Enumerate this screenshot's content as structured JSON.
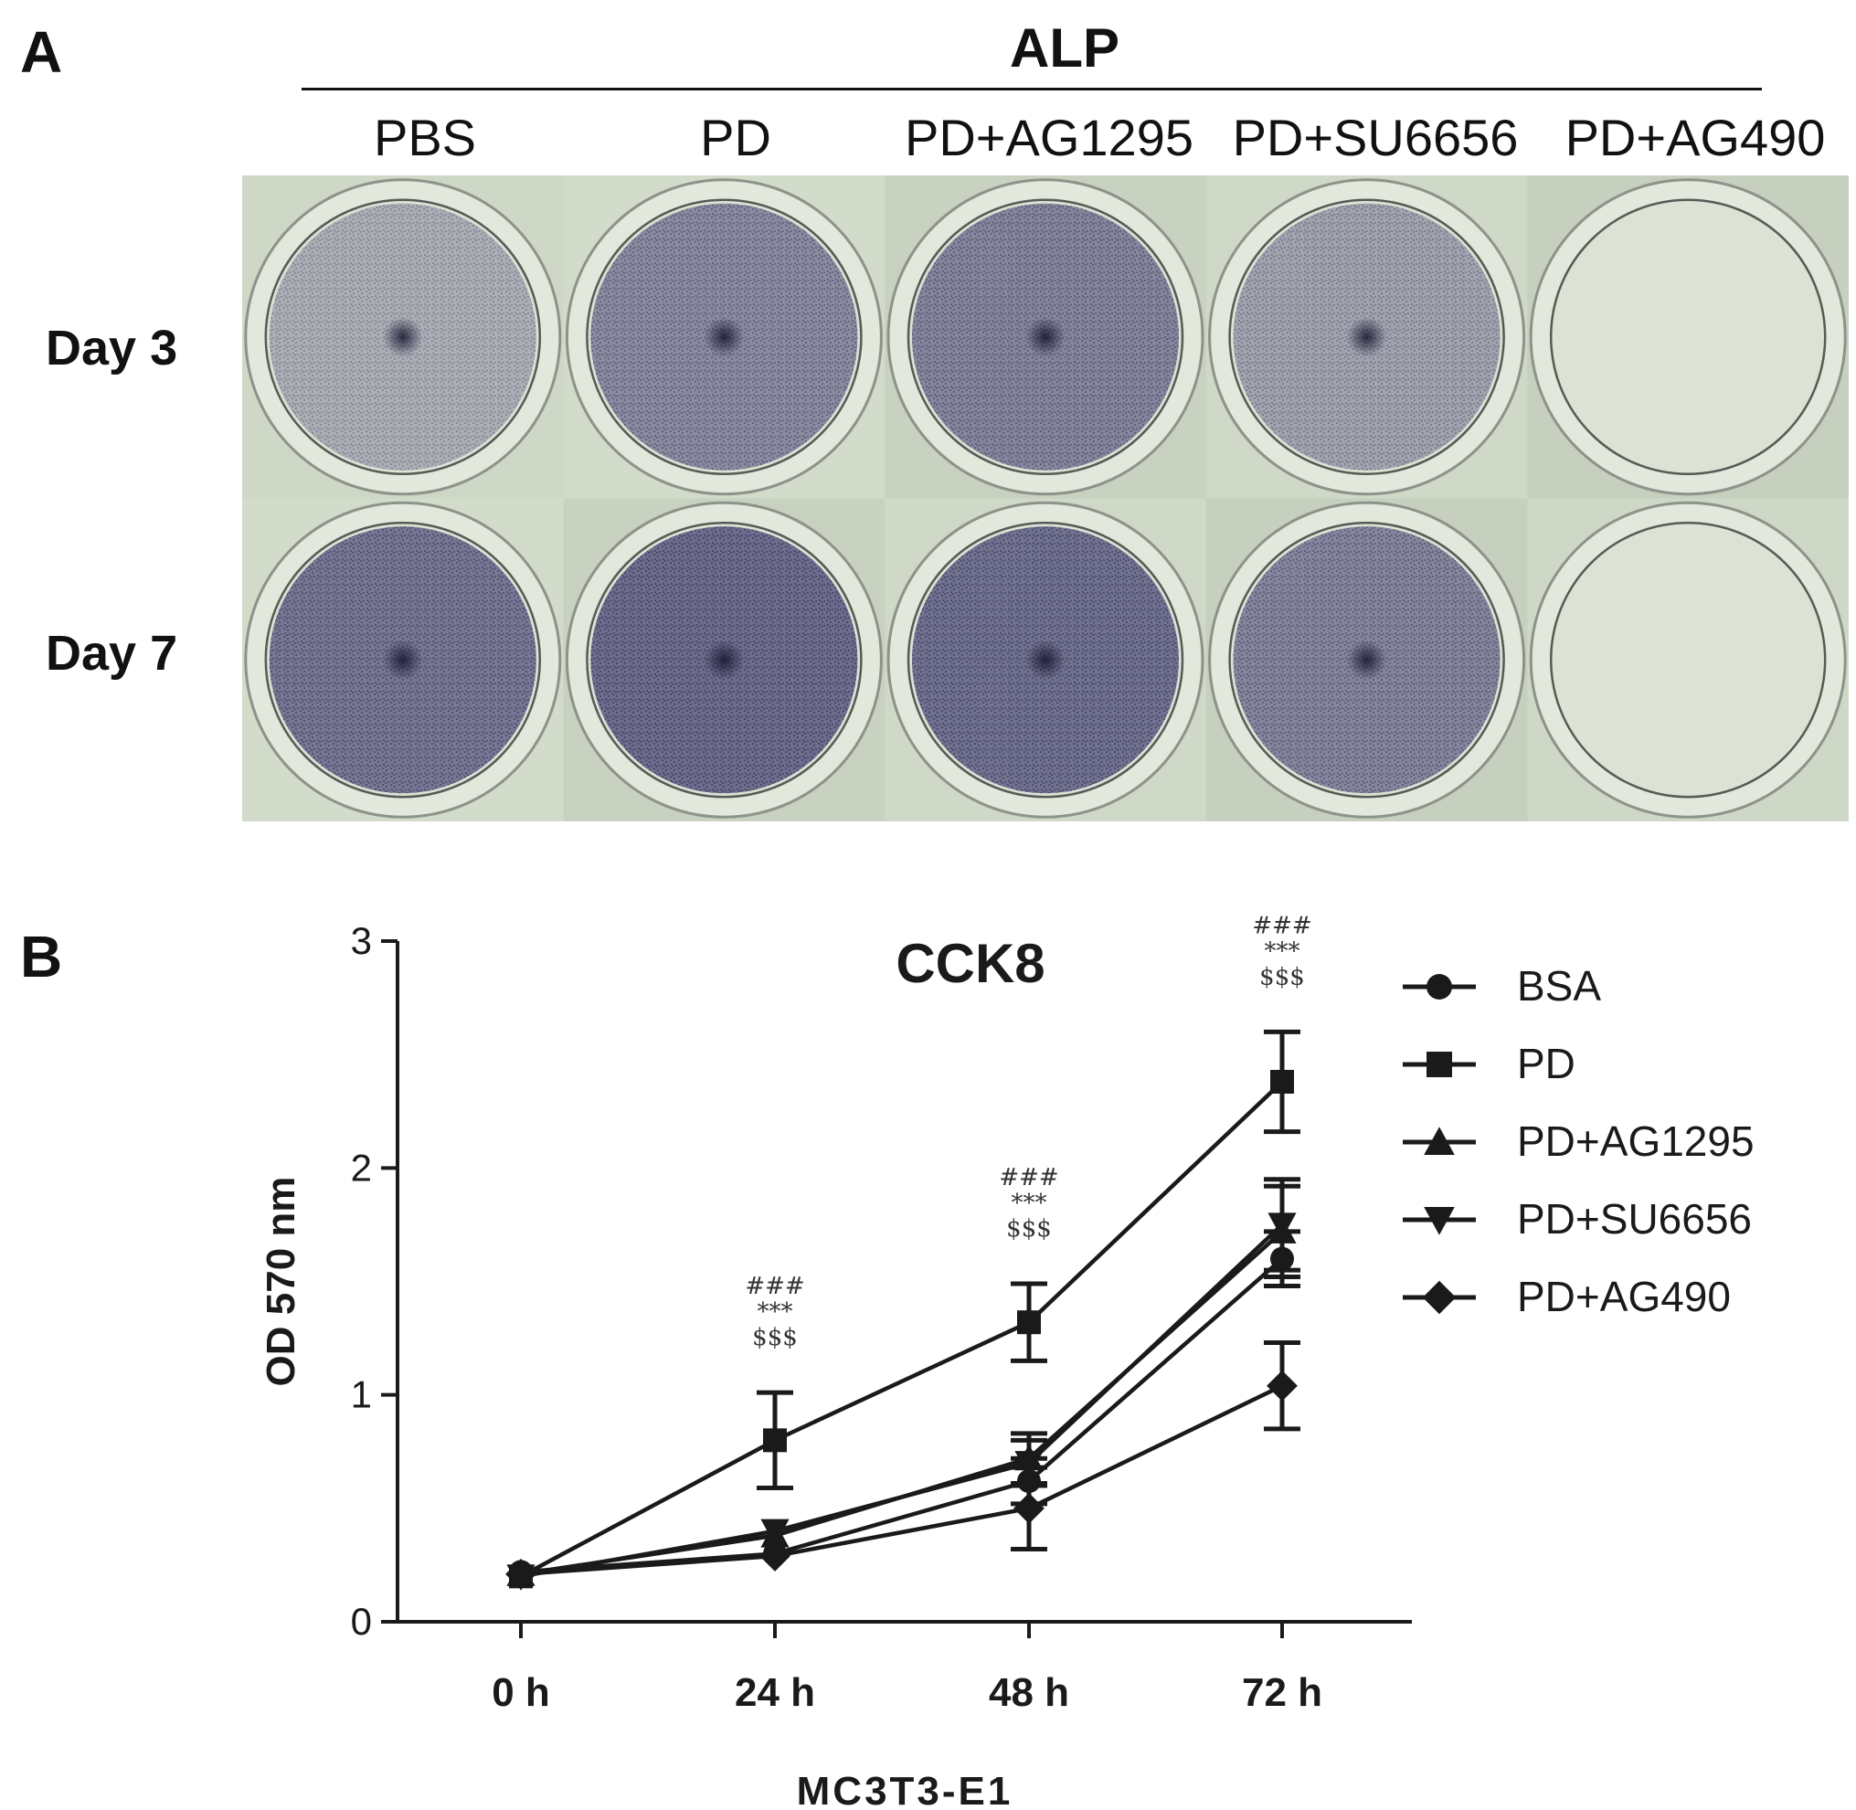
{
  "panel_a": {
    "letter": "A",
    "header": "ALP",
    "columns": [
      "PBS",
      "PD",
      "PD+AG1295",
      "PD+SU6656",
      "PD+AG490"
    ],
    "rows": [
      "Day 3",
      "Day 7"
    ],
    "stain_intensity": [
      [
        0.3,
        0.65,
        0.7,
        0.4,
        0.0
      ],
      [
        0.85,
        0.95,
        0.9,
        0.7,
        0.0
      ]
    ],
    "colors": {
      "background": "#cdd6c4",
      "stain": "#4b4a78",
      "well_rim": "#8c948a"
    }
  },
  "panel_b": {
    "letter": "B",
    "chart_data": {
      "type": "line",
      "title": "CCK8",
      "xlabel": "MC3T3-E1",
      "ylabel": "OD 570 nm",
      "categories": [
        "0 h",
        "24 h",
        "48 h",
        "72 h"
      ],
      "ylim": [
        0,
        3
      ],
      "yticks": [
        "0",
        "1",
        "2",
        "3"
      ],
      "legend_position": "right",
      "series": [
        {
          "name": "BSA",
          "marker": "circle",
          "values": [
            0.22,
            0.3,
            0.62,
            1.6
          ],
          "errors": [
            0.02,
            0.03,
            0.1,
            0.12
          ]
        },
        {
          "name": "PD",
          "marker": "square",
          "values": [
            0.2,
            0.8,
            1.32,
            2.38
          ],
          "errors": [
            0.02,
            0.21,
            0.17,
            0.22
          ]
        },
        {
          "name": "PD+AG1295",
          "marker": "triangle-up",
          "values": [
            0.21,
            0.38,
            0.72,
            1.72
          ],
          "errors": [
            0.02,
            0.04,
            0.11,
            0.2
          ]
        },
        {
          "name": "PD+SU6656",
          "marker": "triangle-down",
          "values": [
            0.2,
            0.4,
            0.7,
            1.75
          ],
          "errors": [
            0.02,
            0.04,
            0.1,
            0.2
          ]
        },
        {
          "name": "PD+AG490",
          "marker": "diamond",
          "values": [
            0.21,
            0.29,
            0.5,
            1.04
          ],
          "errors": [
            0.02,
            0.03,
            0.18,
            0.19
          ]
        }
      ],
      "annotations": [
        {
          "category": "24 h",
          "lines": [
            "###",
            "***",
            "$$$"
          ]
        },
        {
          "category": "48 h",
          "lines": [
            "###",
            "***",
            "$$$"
          ]
        },
        {
          "category": "72 h",
          "lines": [
            "###",
            "***",
            "$$$"
          ]
        }
      ]
    }
  }
}
